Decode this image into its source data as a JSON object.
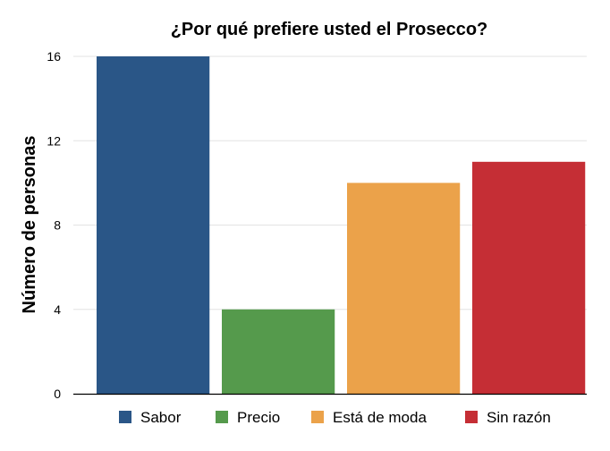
{
  "chart_data": {
    "type": "bar",
    "title": "¿Por qué prefiere usted el Prosecco?",
    "xlabel": "",
    "ylabel": "Número de personas",
    "categories": [
      "Sabor",
      "Precio",
      "Está de moda",
      "Sin razón"
    ],
    "values": [
      16,
      4,
      10,
      11
    ],
    "colors": [
      "#2a5687",
      "#559a4c",
      "#eba24a",
      "#c52e35"
    ],
    "ylim": [
      0,
      16
    ],
    "yticks": [
      0,
      4,
      8,
      12,
      16
    ],
    "grid": true,
    "legend": {
      "position": "bottom",
      "entries": [
        "Sabor",
        "Precio",
        "Está de moda",
        "Sin razón"
      ]
    }
  }
}
